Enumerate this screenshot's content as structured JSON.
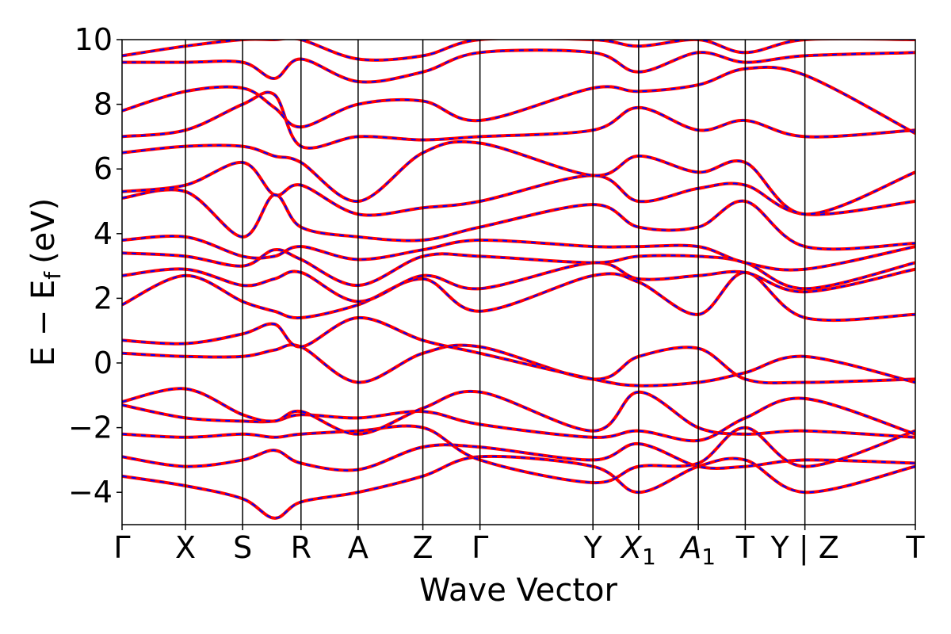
{
  "chart_data": {
    "type": "line",
    "title": "",
    "xlabel": "Wave Vector",
    "ylabel": "E − E",
    "ylabel_subscript": "f",
    "ylabel_unit": "(eV)",
    "ylim": [
      -5,
      10
    ],
    "yticks": [
      -4,
      -2,
      0,
      2,
      4,
      6,
      8,
      10
    ],
    "ytick_labels": [
      "−4",
      "−2",
      "0",
      "2",
      "4",
      "6",
      "8",
      "10"
    ],
    "grid": false,
    "legend": "none",
    "colors": {
      "series_a": "#ff0000",
      "series_b": "#0000ff",
      "axis": "#000000"
    },
    "high_symmetry_points": [
      {
        "label": "Γ",
        "sub": "",
        "k": 0.0
      },
      {
        "label": "X",
        "sub": "",
        "k": 0.5
      },
      {
        "label": "S",
        "sub": "",
        "k": 0.95
      },
      {
        "label": "R",
        "sub": "",
        "k": 1.41
      },
      {
        "label": "A",
        "sub": "",
        "k": 1.86
      },
      {
        "label": "Z",
        "sub": "",
        "k": 2.37
      },
      {
        "label": "Γ",
        "sub": "",
        "k": 2.82
      },
      {
        "label": "Y",
        "sub": "",
        "k": 3.71
      },
      {
        "label": "X",
        "sub": "1",
        "k": 4.07
      },
      {
        "label": "A",
        "sub": "1",
        "k": 4.54
      },
      {
        "label": "T",
        "sub": "",
        "k": 4.91
      },
      {
        "label": "Y | Z",
        "sub": "",
        "k": 5.38
      },
      {
        "label": "T",
        "sub": "",
        "k": 6.25
      }
    ],
    "xlim": [
      0,
      6.25
    ],
    "bands": [
      [
        -3.5,
        -3.8,
        -4.2,
        -4.8,
        -4.3,
        -4.0,
        -3.5,
        -2.9,
        -3.2,
        -4.0,
        -3.2,
        -3.0,
        -4.0,
        -3.2
      ],
      [
        -2.9,
        -3.2,
        -3.0,
        -2.7,
        -3.1,
        -3.3,
        -2.6,
        -2.6,
        -3.0,
        -2.5,
        -3.2,
        -3.2,
        -3.0,
        -3.1
      ],
      [
        -2.2,
        -2.3,
        -2.2,
        -2.3,
        -2.2,
        -2.1,
        -2.0,
        -3.0,
        -3.7,
        -3.2,
        -3.1,
        -2.0,
        -3.2,
        -2.1
      ],
      [
        -1.3,
        -1.7,
        -1.8,
        -1.8,
        -1.6,
        -1.7,
        -1.5,
        -1.9,
        -2.3,
        -2.1,
        -2.4,
        -1.7,
        -1.1,
        -2.2
      ],
      [
        -1.2,
        -0.8,
        -1.6,
        -1.8,
        -1.5,
        -2.2,
        -1.4,
        -0.9,
        -2.1,
        -0.9,
        -2.0,
        -2.2,
        -2.1,
        -2.3
      ],
      [
        0.3,
        0.2,
        0.2,
        0.4,
        0.5,
        -0.6,
        0.3,
        0.5,
        -0.5,
        0.2,
        0.45,
        -0.5,
        -0.6,
        -0.5
      ],
      [
        0.7,
        0.6,
        0.9,
        1.2,
        0.5,
        1.4,
        0.7,
        0.3,
        -0.5,
        -0.7,
        -0.6,
        -0.3,
        0.2,
        -0.6
      ],
      [
        1.8,
        2.7,
        1.9,
        1.6,
        1.4,
        1.8,
        2.6,
        1.6,
        2.7,
        2.5,
        1.5,
        2.8,
        1.4,
        1.5
      ],
      [
        2.7,
        2.9,
        2.4,
        2.6,
        2.8,
        1.9,
        2.7,
        2.3,
        3.1,
        2.6,
        2.7,
        2.8,
        2.2,
        2.9
      ],
      [
        3.4,
        3.3,
        3.0,
        3.5,
        3.2,
        2.4,
        3.3,
        3.3,
        3.1,
        3.3,
        3.3,
        3.1,
        2.3,
        3.1
      ],
      [
        3.8,
        3.9,
        3.3,
        3.3,
        3.6,
        3.2,
        3.5,
        3.8,
        3.6,
        3.6,
        3.6,
        3.1,
        2.9,
        3.6
      ],
      [
        5.1,
        5.3,
        3.9,
        5.2,
        4.2,
        3.9,
        3.8,
        4.2,
        4.9,
        4.2,
        4.2,
        5.0,
        3.6,
        3.7
      ],
      [
        5.3,
        5.5,
        6.2,
        5.2,
        5.5,
        4.6,
        4.8,
        5.0,
        5.8,
        5.0,
        5.4,
        5.5,
        4.6,
        5.0
      ],
      [
        6.5,
        6.7,
        6.7,
        6.4,
        6.2,
        5.0,
        6.5,
        6.8,
        5.8,
        6.4,
        5.9,
        6.2,
        4.6,
        5.9
      ],
      [
        7.0,
        7.2,
        8.0,
        8.3,
        6.7,
        7.0,
        6.9,
        7.0,
        7.2,
        7.9,
        7.2,
        7.5,
        7.0,
        7.2
      ],
      [
        7.8,
        8.4,
        8.5,
        7.9,
        7.3,
        8.0,
        8.1,
        7.5,
        8.5,
        8.4,
        8.6,
        9.1,
        8.9,
        7.1
      ],
      [
        9.3,
        9.3,
        9.3,
        8.8,
        9.4,
        8.7,
        9.0,
        9.6,
        9.6,
        9.0,
        9.6,
        9.3,
        9.5,
        9.6
      ],
      [
        9.5,
        9.8,
        10.0,
        10.0,
        10.0,
        9.4,
        9.5,
        10.0,
        10.0,
        9.8,
        10.0,
        9.6,
        10.0,
        10.0
      ]
    ],
    "band_k": [
      0.0,
      0.5,
      0.95,
      1.2,
      1.41,
      1.86,
      2.37,
      2.82,
      3.71,
      4.07,
      4.54,
      4.91,
      5.38,
      6.25
    ]
  }
}
